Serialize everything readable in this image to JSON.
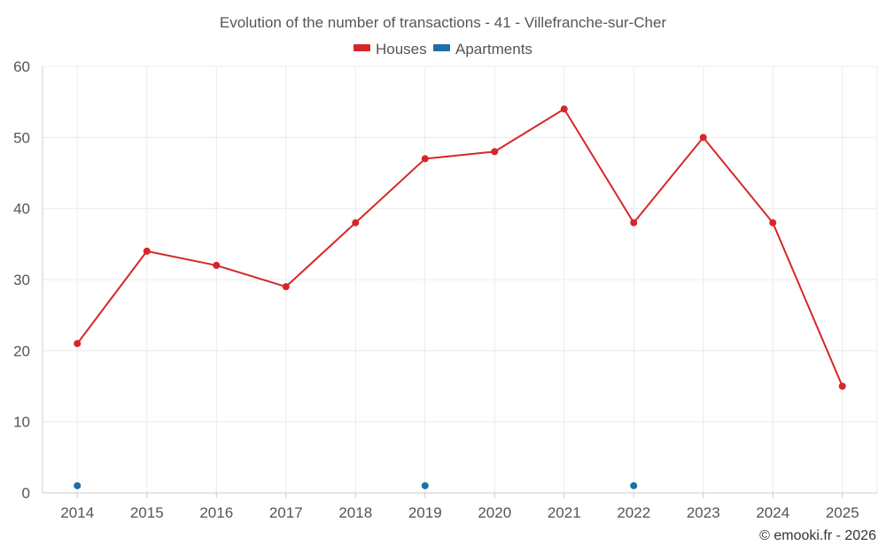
{
  "chart_data": {
    "type": "line",
    "title": "Evolution of the number of transactions - 41 - Villefranche-sur-Cher",
    "xlabel": "",
    "ylabel": "",
    "categories": [
      "2014",
      "2015",
      "2016",
      "2017",
      "2018",
      "2019",
      "2020",
      "2021",
      "2022",
      "2023",
      "2024",
      "2025"
    ],
    "ylim": [
      0,
      60
    ],
    "yticks": [
      "0",
      "10",
      "20",
      "30",
      "40",
      "50",
      "60"
    ],
    "grid": true,
    "legend_position": "top-center",
    "series": [
      {
        "name": "Houses",
        "color": "#d62728",
        "values": [
          21,
          34,
          32,
          29,
          38,
          47,
          48,
          54,
          38,
          50,
          38,
          15
        ]
      },
      {
        "name": "Apartments",
        "color": "#1f6fa5",
        "values": [
          1,
          null,
          null,
          null,
          null,
          1,
          null,
          null,
          1,
          null,
          null,
          null
        ]
      }
    ]
  },
  "footer": {
    "credit": "© emooki.fr - 2026"
  }
}
